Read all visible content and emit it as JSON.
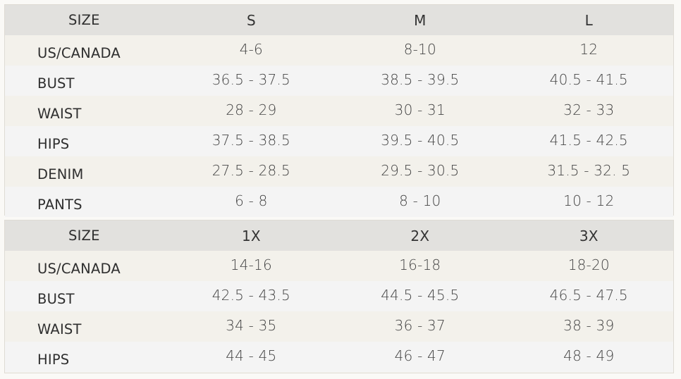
{
  "tables": [
    {
      "header": [
        "SIZE",
        "S",
        "M",
        "L"
      ],
      "rows": [
        [
          "US/CANADA",
          "4-6",
          "8-10",
          "12"
        ],
        [
          "BUST",
          "36.5 - 37.5",
          "38.5 - 39.5",
          "40.5 - 41.5"
        ],
        [
          "WAIST",
          "28 - 29",
          "30 - 31",
          "32 - 33"
        ],
        [
          "HIPS",
          "37.5 - 38.5",
          "39.5 - 40.5",
          "41.5 - 42.5"
        ],
        [
          "DENIM",
          "27.5 - 28.5",
          "29.5 - 30.5",
          "31.5 - 32. 5"
        ],
        [
          "PANTS",
          "6 - 8",
          "8 - 10",
          "10 - 12"
        ]
      ]
    },
    {
      "header": [
        "SIZE",
        "1X",
        "2X",
        "3X"
      ],
      "rows": [
        [
          "US/CANADA",
          "14-16",
          "16-18",
          "18-20"
        ],
        [
          "BUST",
          "42.5 - 43.5",
          "44.5 - 45.5",
          "46.5 - 47.5"
        ],
        [
          "WAIST",
          "34 - 35",
          "36 - 37",
          "38 - 39"
        ],
        [
          "HIPS",
          "44 - 45",
          "46 - 47",
          "48 - 49"
        ]
      ]
    }
  ],
  "colors": {
    "header_bg": "#e2e1de",
    "row_warm": "#f3f1eb",
    "row_cool": "#f4f4f4",
    "text": "#2f2f2f"
  }
}
